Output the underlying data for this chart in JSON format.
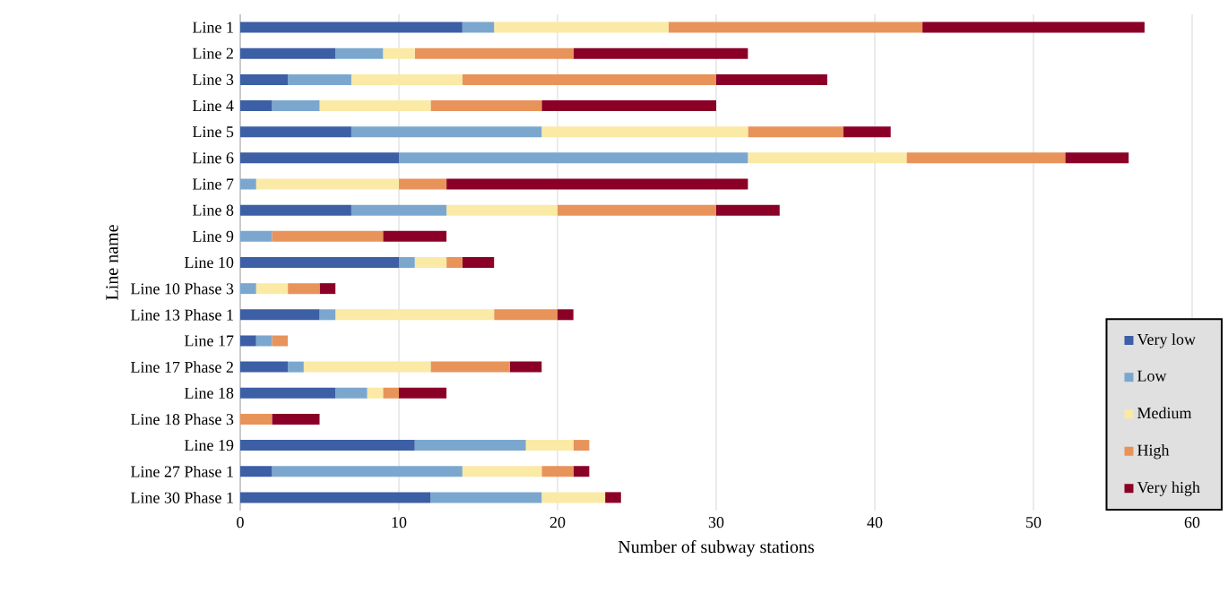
{
  "chart_data": {
    "type": "bar",
    "orientation": "horizontal",
    "stacked": true,
    "xlabel": "Number of subway stations",
    "ylabel": "Line name",
    "categories": [
      "Line 1",
      "Line 2",
      "Line 3",
      "Line 4",
      "Line 5",
      "Line 6",
      "Line 7",
      "Line 8",
      "Line 9",
      "Line 10",
      "Line 10 Phase 3",
      "Line 13 Phase 1",
      "Line 17",
      "Line 17 Phase 2",
      "Line 18",
      "Line 18 Phase 3",
      "Line 19",
      "Line 27 Phase 1",
      "Line 30 Phase 1"
    ],
    "series": [
      {
        "name": "Very low",
        "color": "#3c5fa5",
        "values": [
          14,
          6,
          3,
          2,
          7,
          10,
          0,
          7,
          0,
          10,
          0,
          5,
          1,
          3,
          6,
          0,
          11,
          2,
          12
        ]
      },
      {
        "name": "Low",
        "color": "#7ba7cf",
        "values": [
          2,
          3,
          4,
          3,
          12,
          22,
          1,
          6,
          2,
          1,
          1,
          1,
          1,
          1,
          2,
          0,
          7,
          12,
          7
        ]
      },
      {
        "name": "Medium",
        "color": "#fbe9a6",
        "values": [
          11,
          2,
          7,
          7,
          13,
          10,
          9,
          7,
          0,
          2,
          2,
          10,
          0,
          8,
          1,
          0,
          3,
          5,
          4
        ]
      },
      {
        "name": "High",
        "color": "#e8935a",
        "values": [
          16,
          10,
          16,
          7,
          6,
          10,
          3,
          10,
          7,
          1,
          2,
          4,
          1,
          5,
          1,
          2,
          1,
          2,
          0
        ]
      },
      {
        "name": "Very high",
        "color": "#8b0027",
        "values": [
          14,
          11,
          7,
          11,
          3,
          4,
          19,
          4,
          4,
          2,
          1,
          1,
          0,
          2,
          3,
          3,
          0,
          1,
          1
        ]
      }
    ],
    "xlim": [
      0,
      60
    ],
    "xticks": [
      0,
      10,
      20,
      30,
      40,
      50,
      60
    ],
    "grid": "x",
    "legend": "bottom right"
  }
}
